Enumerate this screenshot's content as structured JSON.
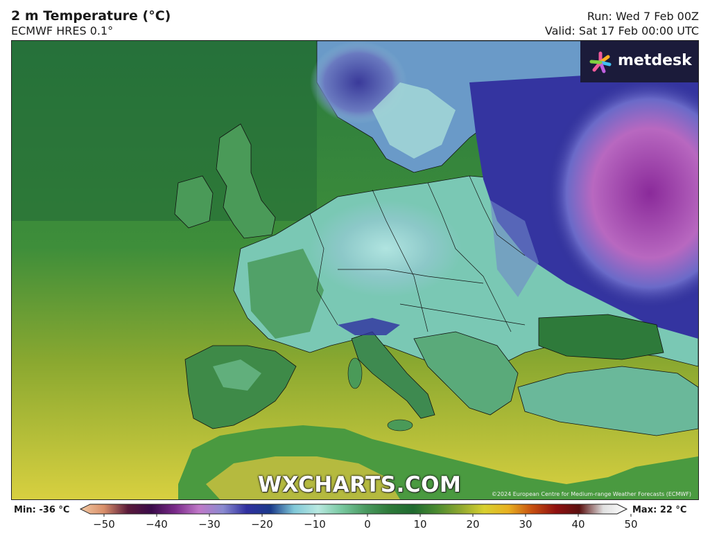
{
  "header": {
    "title": "2 m Temperature (°C)",
    "subtitle": "ECMWF HRES 0.1°",
    "run": "Run: Wed 7 Feb 00Z",
    "valid": "Valid: Sat 17 Feb 00:00 UTC"
  },
  "logo": {
    "text": "metdesk"
  },
  "watermark": {
    "text": "WXCHARTS.COM"
  },
  "copyright": "©2024 European Centre for Medium-range Weather Forecasts (ECMWF)",
  "colorbar": {
    "min_label": "Min: -36 °C",
    "max_label": "Max: 22 °C",
    "ticks": [
      "−50",
      "−40",
      "−30",
      "−20",
      "−10",
      "0",
      "10",
      "20",
      "30",
      "40",
      "50"
    ],
    "range": [
      -50,
      50
    ],
    "colors": [
      "#f2c8a2",
      "#d98f6a",
      "#5a1a3a",
      "#3a0a4a",
      "#7a2a8a",
      "#c078c8",
      "#8a8ad0",
      "#3030a0",
      "#1a3a8a",
      "#80c8d8",
      "#b8e8e0",
      "#78c8a0",
      "#4a9a60",
      "#2e7a3a",
      "#1f6a30",
      "#4a8a30",
      "#90a830",
      "#d8d030",
      "#e8b020",
      "#c85010",
      "#901010",
      "#5a1010",
      "#e0e0e0",
      "#ffffff"
    ]
  }
}
